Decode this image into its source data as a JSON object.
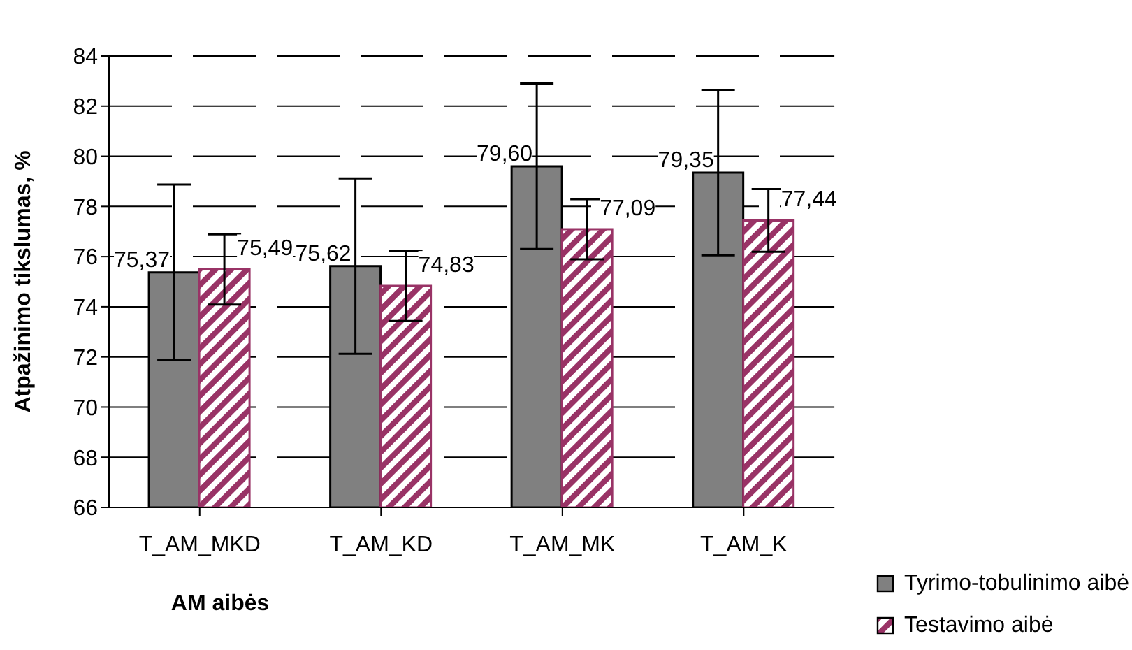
{
  "chart_data": {
    "type": "bar",
    "xlabel": "AM aibės",
    "ylabel": "Atpažinimo tikslumas, %",
    "categories": [
      "T_AM_MKD",
      "T_AM_KD",
      "T_AM_MK",
      "T_AM_K"
    ],
    "series": [
      {
        "name": "Tyrimo-tobulinimo aibė",
        "color": "#808080",
        "values": [
          75.37,
          75.62,
          79.6,
          79.35
        ],
        "errors": [
          3.5,
          3.5,
          3.3,
          3.3
        ],
        "value_labels": [
          "75,37",
          "75,62",
          "79,60",
          "79,35"
        ]
      },
      {
        "name": "Testavimo aibė",
        "color": "#993366",
        "values": [
          75.49,
          74.83,
          77.09,
          77.44
        ],
        "errors": [
          1.4,
          1.4,
          1.2,
          1.25
        ],
        "value_labels": [
          "75,49",
          "74,83",
          "77,09",
          "77,44"
        ]
      }
    ],
    "ylim": [
      66,
      84
    ],
    "yticks": [
      66,
      68,
      70,
      72,
      74,
      76,
      78,
      80,
      82,
      84
    ],
    "grid": "y",
    "legend": "bottom right"
  }
}
